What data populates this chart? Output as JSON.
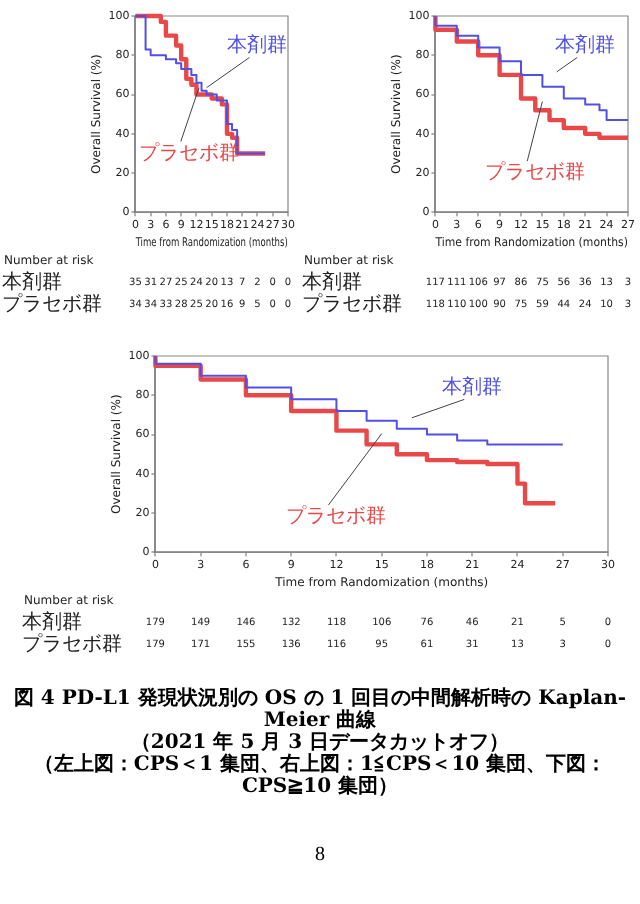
{
  "chart_data": [
    {
      "type": "step",
      "xlabel": "Time from Randomization (months)",
      "ylabel": "Overall Survival (%)",
      "xlim": [
        0,
        30
      ],
      "xticks": [
        0,
        3,
        6,
        9,
        12,
        15,
        18,
        21,
        24,
        27,
        30
      ],
      "ylim": [
        0,
        100
      ],
      "yticks": [
        0,
        20,
        40,
        60,
        80,
        100
      ],
      "legend": false,
      "grid": false,
      "series": [
        {
          "name": "本剤群",
          "color": "#5050e8",
          "x": [
            0,
            2,
            3,
            6,
            8,
            9,
            11,
            12,
            13,
            14,
            16,
            18,
            19,
            20,
            21,
            25.5
          ],
          "values": [
            100,
            100,
            83,
            80,
            78,
            76,
            73,
            70,
            66,
            62,
            60,
            57,
            45,
            42,
            30,
            30
          ]
        },
        {
          "name": "プラセボ群",
          "color": "#e84848",
          "x": [
            0,
            5,
            6,
            8,
            9,
            10,
            11,
            12,
            15,
            17,
            18,
            19,
            20,
            21,
            25.5
          ],
          "values": [
            100,
            100,
            97,
            90,
            85,
            78,
            68,
            65,
            60,
            58,
            55,
            40,
            38,
            30,
            30
          ]
        }
      ],
      "annotations": [
        "Number at risk",
        "本剤群 35 31 27 25 24 20 13 7 2 0 0",
        "プラセボ群 34 34 33 28 25 20 16 9 5 0 0"
      ]
    },
    {
      "type": "step",
      "xlabel": "Time from Randomization (months)",
      "ylabel": "Overall Survival (%)",
      "xlim": [
        0,
        27
      ],
      "xticks": [
        0,
        3,
        6,
        9,
        12,
        15,
        18,
        21,
        24,
        27
      ],
      "ylim": [
        0,
        100
      ],
      "yticks": [
        0,
        20,
        40,
        60,
        80,
        100
      ],
      "legend": false,
      "grid": false,
      "series": [
        {
          "name": "本剤群",
          "color": "#5050e8",
          "x": [
            0,
            3,
            6,
            9,
            12,
            15,
            18,
            21,
            23,
            24,
            24.5,
            27
          ],
          "values": [
            100,
            95,
            90,
            84,
            77,
            70,
            64,
            58,
            55,
            52,
            47,
            47
          ]
        },
        {
          "name": "プラセボ群",
          "color": "#e84848",
          "x": [
            0,
            3,
            6,
            9,
            12,
            14,
            16,
            18,
            21,
            23,
            24,
            27
          ],
          "values": [
            100,
            93,
            87,
            80,
            70,
            58,
            52,
            47,
            43,
            40,
            38,
            38
          ]
        }
      ],
      "annotations": [
        "Number at risk",
        "本剤群 117 111 106 97 86 75 56 36 13 3",
        "プラセボ群 118 110 100 90 75 59 44 24 10 3"
      ]
    },
    {
      "type": "step",
      "xlabel": "Time from Randomization (months)",
      "ylabel": "Overall Survival (%)",
      "xlim": [
        0,
        30
      ],
      "xticks": [
        0,
        3,
        6,
        9,
        12,
        15,
        18,
        21,
        24,
        27,
        30
      ],
      "ylim": [
        0,
        100
      ],
      "yticks": [
        0,
        20,
        40,
        60,
        80,
        100
      ],
      "legend": false,
      "grid": false,
      "series": [
        {
          "name": "本剤群",
          "color": "#5050e8",
          "x": [
            0,
            3,
            6,
            9,
            12,
            14,
            16,
            18,
            20,
            22,
            24,
            27
          ],
          "values": [
            100,
            96,
            90,
            84,
            78,
            72,
            67,
            63,
            60,
            57,
            55,
            55
          ]
        },
        {
          "name": "プラセボ群",
          "color": "#e84848",
          "x": [
            0,
            3,
            6,
            9,
            12,
            14,
            16,
            18,
            20,
            22,
            24,
            24.5,
            25,
            26.5
          ],
          "values": [
            100,
            95,
            88,
            80,
            72,
            62,
            55,
            50,
            47,
            46,
            45,
            35,
            25,
            25
          ]
        }
      ],
      "annotations": [
        "Number at risk",
        "本剤群 179 149 146 132 118 106 76 46 21 5 0",
        "プラセボ群 179 171 155 136 116 95 61 31 13 3 0",
        "図 4 PD-L1 発現状況別の OS の 1 回目の中間解析時の Kaplan-Meier 曲線",
        "（2021 年 5 月 3 日データカットオフ）",
        "（左上図：CPS＜1 集団、右上図：1≦CPS＜10 集団、下図：CPS≧10 集団）",
        "8"
      ]
    }
  ]
}
